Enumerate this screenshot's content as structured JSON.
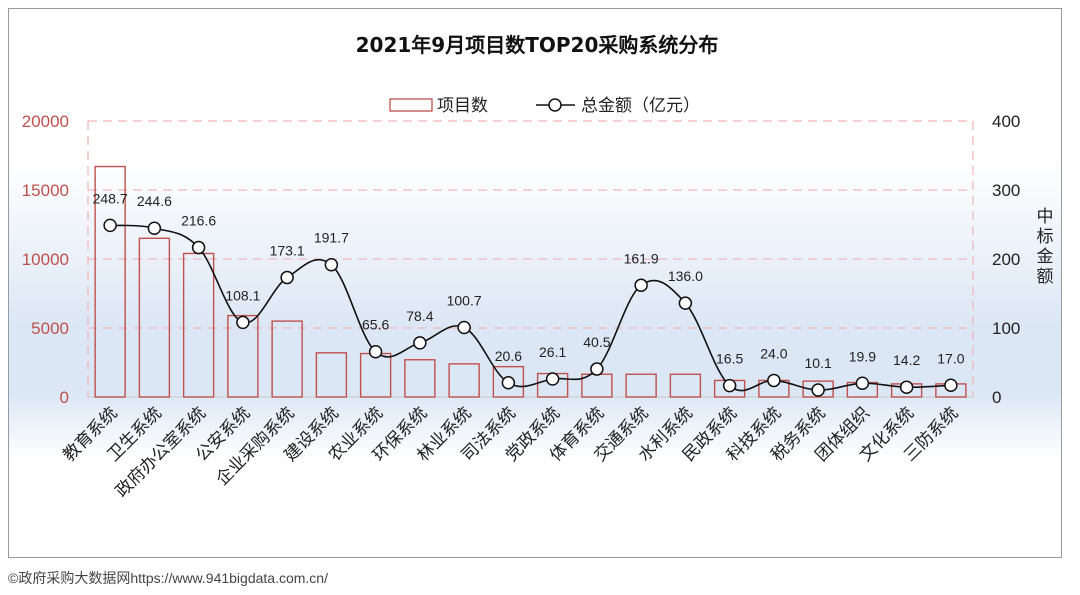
{
  "chart_data": {
    "type": "bar",
    "title": "2021年9月项目数TOP20采购系统分布",
    "categories": [
      "教育系统",
      "卫生系统",
      "政府办公室系统",
      "公安系统",
      "企业采购系统",
      "建设系统",
      "农业系统",
      "环保系统",
      "林业系统",
      "司法系统",
      "党政系统",
      "体育系统",
      "交通系统",
      "水利系统",
      "民政系统",
      "科技系统",
      "税务系统",
      "团体组织",
      "文化系统",
      "三防系统"
    ],
    "series": [
      {
        "name": "项目数",
        "type": "bar",
        "axis": "left",
        "values": [
          16700,
          11500,
          10400,
          5900,
          5500,
          3200,
          3150,
          2700,
          2400,
          2200,
          1700,
          1650,
          1650,
          1650,
          1200,
          1200,
          1150,
          1050,
          950,
          950
        ]
      },
      {
        "name": "总金额（亿元）",
        "type": "line",
        "axis": "right",
        "values": [
          248.7,
          244.6,
          216.6,
          108.1,
          173.1,
          191.7,
          65.6,
          78.4,
          100.7,
          20.6,
          26.1,
          40.5,
          161.9,
          136.0,
          16.5,
          24.0,
          10.1,
          19.9,
          14.2,
          17.0
        ],
        "labels": [
          "248.7",
          "244.6",
          "216.6",
          "108.1",
          "173.1",
          "191.7",
          "65.6",
          "78.4",
          "100.7",
          "20.6",
          "26.1",
          "40.5",
          "161.9",
          "136.0",
          "16.5",
          "24.0",
          "10.1",
          "19.9",
          "14.2",
          "17.0"
        ]
      }
    ],
    "y_left": {
      "ylim": [
        0,
        20000
      ],
      "ticks": [
        "0",
        "5000",
        "10000",
        "15000",
        "20000"
      ]
    },
    "y_right": {
      "ylim": [
        0,
        400
      ],
      "ticks": [
        "0",
        "100",
        "200",
        "300",
        "400"
      ],
      "label": "中标金额"
    },
    "legend_position": "top-center",
    "grid": true,
    "colors": {
      "bar_stroke": "#c0504d",
      "line": "#111111",
      "left_axis_text": "#c0504d",
      "gridline": "#f2b8b8",
      "band": "#dce7f5"
    }
  },
  "footer": {
    "credit": "©政府采购大数据网https://www.941bigdata.com.cn/"
  }
}
